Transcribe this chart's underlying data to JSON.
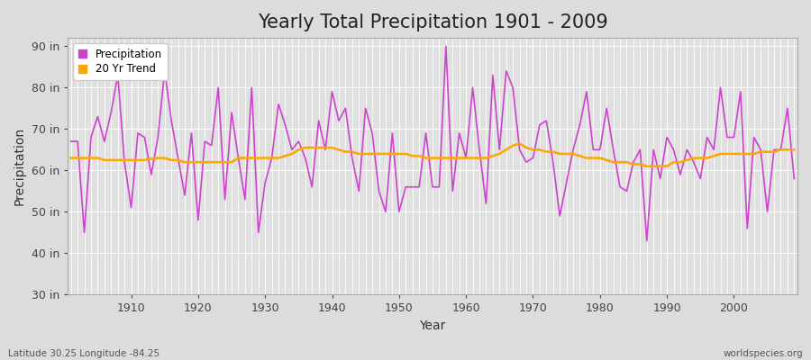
{
  "title": "Yearly Total Precipitation 1901 - 2009",
  "xlabel": "Year",
  "ylabel": "Precipitation",
  "years": [
    1901,
    1902,
    1903,
    1904,
    1905,
    1906,
    1907,
    1908,
    1909,
    1910,
    1911,
    1912,
    1913,
    1914,
    1915,
    1916,
    1917,
    1918,
    1919,
    1920,
    1921,
    1922,
    1923,
    1924,
    1925,
    1926,
    1927,
    1928,
    1929,
    1930,
    1931,
    1932,
    1933,
    1934,
    1935,
    1936,
    1937,
    1938,
    1939,
    1940,
    1941,
    1942,
    1943,
    1944,
    1945,
    1946,
    1947,
    1948,
    1949,
    1950,
    1951,
    1952,
    1953,
    1954,
    1955,
    1956,
    1957,
    1958,
    1959,
    1960,
    1961,
    1962,
    1963,
    1964,
    1965,
    1966,
    1967,
    1968,
    1969,
    1970,
    1971,
    1972,
    1973,
    1974,
    1975,
    1976,
    1977,
    1978,
    1979,
    1980,
    1981,
    1982,
    1983,
    1984,
    1985,
    1986,
    1987,
    1988,
    1989,
    1990,
    1991,
    1992,
    1993,
    1994,
    1995,
    1996,
    1997,
    1998,
    1999,
    2000,
    2001,
    2002,
    2003,
    2004,
    2005,
    2006,
    2007,
    2008,
    2009
  ],
  "precip": [
    67,
    67,
    45,
    68,
    73,
    67,
    74,
    83,
    62,
    51,
    69,
    68,
    59,
    68,
    84,
    72,
    63,
    54,
    69,
    48,
    67,
    66,
    80,
    53,
    74,
    63,
    53,
    80,
    45,
    57,
    63,
    76,
    71,
    65,
    67,
    63,
    56,
    72,
    65,
    79,
    72,
    75,
    63,
    55,
    75,
    69,
    55,
    50,
    69,
    50,
    56,
    56,
    56,
    69,
    56,
    56,
    90,
    55,
    69,
    63,
    80,
    65,
    52,
    83,
    65,
    84,
    80,
    65,
    62,
    63,
    71,
    72,
    62,
    49,
    57,
    65,
    71,
    79,
    65,
    65,
    75,
    65,
    56,
    55,
    62,
    65,
    43,
    65,
    58,
    68,
    65,
    59,
    65,
    62,
    58,
    68,
    65,
    80,
    68,
    68,
    79,
    46,
    68,
    65,
    50,
    65,
    65,
    75,
    58
  ],
  "trend": [
    63.0,
    63.0,
    63.0,
    63.0,
    63.0,
    62.5,
    62.5,
    62.5,
    62.5,
    62.5,
    62.5,
    62.5,
    62.8,
    63.0,
    63.0,
    62.5,
    62.5,
    62.0,
    62.0,
    62.0,
    62.0,
    62.0,
    62.0,
    62.0,
    62.0,
    63.0,
    63.0,
    63.0,
    63.0,
    63.0,
    63.0,
    63.0,
    63.5,
    64.0,
    65.0,
    65.5,
    65.5,
    65.5,
    65.5,
    65.5,
    65.0,
    64.5,
    64.5,
    64.0,
    64.0,
    64.0,
    64.0,
    64.0,
    64.0,
    64.0,
    64.0,
    63.5,
    63.5,
    63.0,
    63.0,
    63.0,
    63.0,
    63.0,
    63.0,
    63.0,
    63.0,
    63.0,
    63.0,
    63.5,
    64.0,
    65.0,
    66.0,
    66.5,
    65.5,
    65.0,
    65.0,
    64.5,
    64.5,
    64.0,
    64.0,
    64.0,
    63.5,
    63.0,
    63.0,
    63.0,
    62.5,
    62.0,
    62.0,
    62.0,
    61.5,
    61.5,
    61.0,
    61.0,
    61.0,
    61.0,
    62.0,
    62.0,
    62.5,
    63.0,
    63.0,
    63.0,
    63.5,
    64.0,
    64.0,
    64.0,
    64.0,
    64.0,
    64.0,
    64.5,
    64.5,
    64.5,
    65.0,
    65.0,
    65.0
  ],
  "precip_color": "#CC44CC",
  "trend_color": "#FFA500",
  "bg_color": "#DCDCDC",
  "plot_bg_color": "#E0E0E0",
  "grid_color": "#FFFFFF",
  "ylim": [
    30,
    92
  ],
  "yticks": [
    30,
    40,
    50,
    60,
    70,
    80,
    90
  ],
  "ytick_labels": [
    "30 in",
    "40 in",
    "50 in",
    "60 in",
    "70 in",
    "80 in",
    "90 in"
  ],
  "xticks": [
    1910,
    1920,
    1930,
    1940,
    1950,
    1960,
    1970,
    1980,
    1990,
    2000
  ],
  "title_fontsize": 15,
  "label_fontsize": 10,
  "tick_fontsize": 9,
  "footer_left": "Latitude 30.25 Longitude -84.25",
  "footer_right": "worldspecies.org"
}
